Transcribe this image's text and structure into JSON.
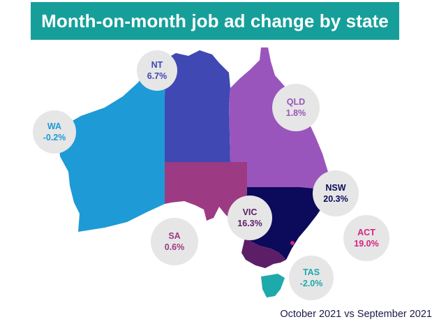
{
  "title": "Month-on-month job ad change by state",
  "footnote": "October 2021 vs September 2021",
  "colors": {
    "banner": "#169f9a",
    "WA": "#1e9ad6",
    "NT": "#3f48b3",
    "QLD": "#9a55bc",
    "SA": "#9c3a84",
    "NSW": "#0c0a5a",
    "VIC": "#5c1e67",
    "ACT": "#d6237f",
    "TAS": "#1ea9ab"
  },
  "states": [
    {
      "code": "NT",
      "label": "NT",
      "value": "6.7%",
      "change_pct": 6.7
    },
    {
      "code": "WA",
      "label": "WA",
      "value": "-0.2%",
      "change_pct": -0.2
    },
    {
      "code": "QLD",
      "label": "QLD",
      "value": "1.8%",
      "change_pct": 1.8
    },
    {
      "code": "NSW",
      "label": "NSW",
      "value": "20.3%",
      "change_pct": 20.3
    },
    {
      "code": "VIC",
      "label": "VIC",
      "value": "16.3%",
      "change_pct": 16.3
    },
    {
      "code": "ACT",
      "label": "ACT",
      "value": "19.0%",
      "change_pct": 19.0
    },
    {
      "code": "SA",
      "label": "SA",
      "value": "0.6%",
      "change_pct": 0.6
    },
    {
      "code": "TAS",
      "label": "TAS",
      "value": "-2.0%",
      "change_pct": -2.0
    }
  ]
}
